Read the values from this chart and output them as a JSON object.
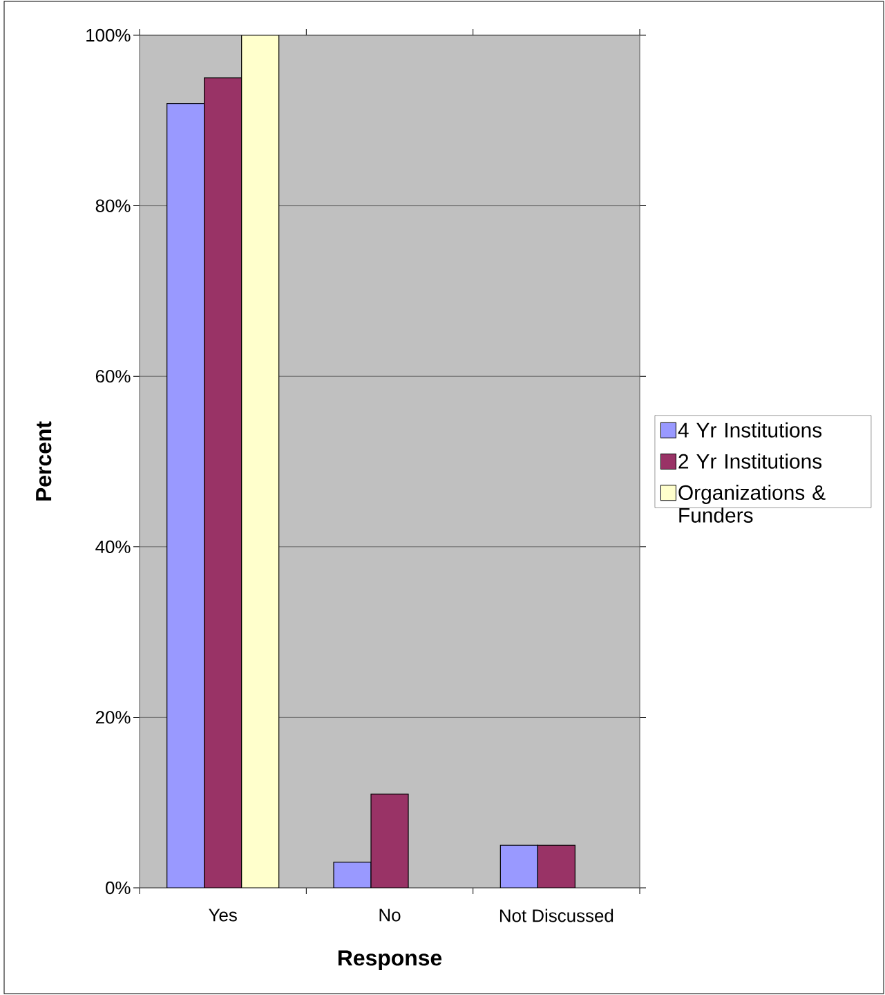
{
  "chart_data": {
    "type": "bar",
    "xlabel": "Response",
    "ylabel": "Percent",
    "categories": [
      "Yes",
      "No",
      "Not Discussed"
    ],
    "series": [
      {
        "name": "4 Yr Institutions",
        "color": "#9999ff",
        "values": [
          92,
          3,
          5
        ]
      },
      {
        "name": "2 Yr Institutions",
        "color": "#993366",
        "values": [
          95,
          11,
          5
        ]
      },
      {
        "name": "Organizations & Funders",
        "color": "#ffffcc",
        "values": [
          100,
          null,
          null
        ]
      }
    ],
    "ylim": [
      0,
      100
    ],
    "yticks": [
      {
        "value": 0,
        "label": "0%"
      },
      {
        "value": 20,
        "label": "20%"
      },
      {
        "value": 40,
        "label": "40%"
      },
      {
        "value": 60,
        "label": "60%"
      },
      {
        "value": 80,
        "label": "80%"
      },
      {
        "value": 100,
        "label": "100%"
      }
    ],
    "grid": "y",
    "legend": "right"
  }
}
